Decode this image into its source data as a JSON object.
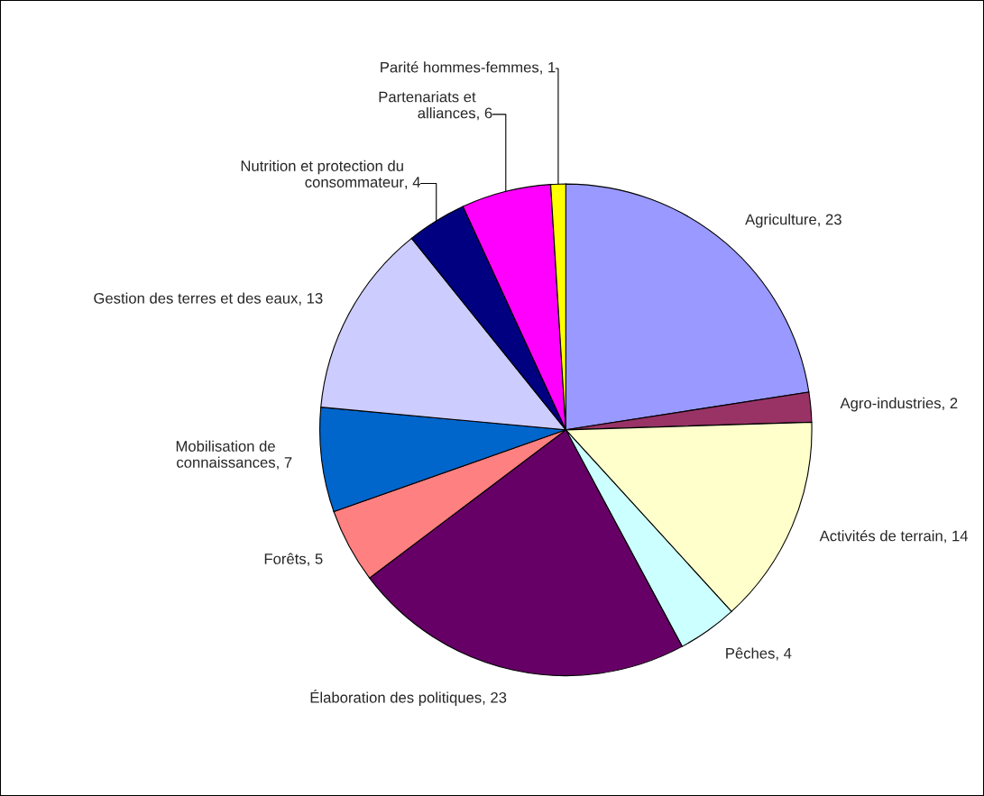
{
  "chart_data": {
    "type": "pie",
    "categories": [
      "Agriculture",
      "Agro-industries",
      "Activités de terrain",
      "Pêches",
      "Élaboration des politiques",
      "Forêts",
      "Mobilisation de\nconnaissances",
      "Gestion des terres et des eaux",
      "Nutrition et protection du\nconsommateur",
      "Partenariats et\nalliances",
      "Parité hommes-femmes"
    ],
    "values": [
      23,
      2,
      14,
      4,
      23,
      5,
      7,
      13,
      4,
      6,
      1
    ],
    "colors": [
      "#9999ff",
      "#993366",
      "#ffffcc",
      "#ccffff",
      "#660066",
      "#ff8080",
      "#0066cc",
      "#ccccff",
      "#000080",
      "#ff00ff",
      "#ffff00"
    ],
    "value_labels": [
      ", 23",
      ", 2",
      ", 14",
      ", 4",
      ", 23",
      ", 5",
      ", 7",
      ", 13",
      ", 4",
      ", 6",
      ", 1"
    ]
  }
}
